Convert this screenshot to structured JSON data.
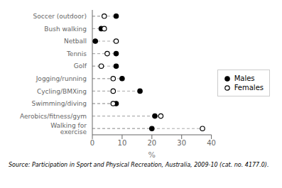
{
  "chart_data": {
    "type": "dot",
    "orientation": "horizontal",
    "categories": [
      "Walking for exercise",
      "Aerobics/fitness/gym",
      "Swimming/diving",
      "Cycling/BMXing",
      "Jogging/running",
      "Golf",
      "Tennis",
      "Netball",
      "Bush walking",
      "Soccer (outdoor)"
    ],
    "series": [
      {
        "name": "Males",
        "color": "#000000",
        "marker": "circle",
        "values": [
          20.0,
          21.0,
          8.0,
          16.0,
          10.0,
          8.0,
          8.0,
          1.0,
          3.0,
          8.0
        ]
      },
      {
        "name": "Females",
        "color": "#000000",
        "marker": "open_circle",
        "values": [
          37.0,
          23.0,
          7.0,
          7.0,
          7.0,
          3.0,
          5.0,
          8.0,
          4.0,
          4.0
        ]
      }
    ],
    "xlabel": "%",
    "xlim": [
      0,
      40
    ],
    "xticks": [
      0,
      10,
      20,
      30,
      40
    ],
    "grid": false,
    "legend": "right",
    "annotations": [
      "Source: Participation in Sport and Physical Recreation, Australia, 2009-10 (cat. no. 4177.0)."
    ]
  }
}
